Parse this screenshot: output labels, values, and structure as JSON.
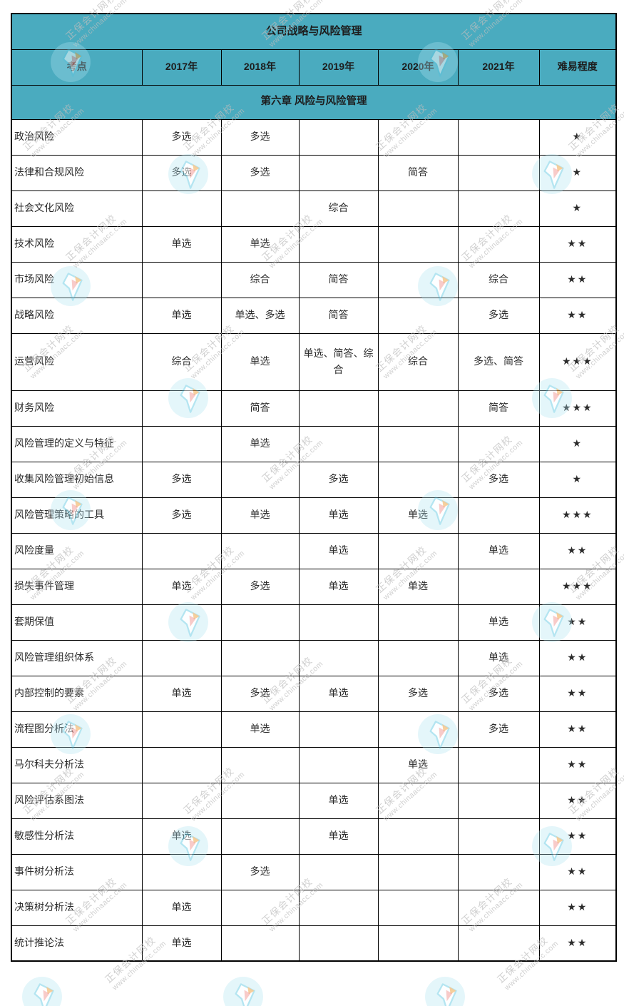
{
  "table": {
    "title": "公司战略与风险管理",
    "section": "第六章 风险与风险管理",
    "columns": [
      "考点",
      "2017年",
      "2018年",
      "2019年",
      "2020年",
      "2021年",
      "难易程度"
    ],
    "rows": [
      {
        "topic": "政治风险",
        "cells": [
          "多选",
          "多选",
          "",
          "",
          ""
        ],
        "difficulty": "★"
      },
      {
        "topic": "法律和合规风险",
        "cells": [
          "多选",
          "多选",
          "",
          "简答",
          ""
        ],
        "difficulty": "★"
      },
      {
        "topic": "社会文化风险",
        "cells": [
          "",
          "",
          "综合",
          "",
          ""
        ],
        "difficulty": "★"
      },
      {
        "topic": "技术风险",
        "cells": [
          "单选",
          "单选",
          "",
          "",
          ""
        ],
        "difficulty": "★★"
      },
      {
        "topic": "市场风险",
        "cells": [
          "",
          "综合",
          "简答",
          "",
          "综合"
        ],
        "difficulty": "★★"
      },
      {
        "topic": "战略风险",
        "cells": [
          "单选",
          "单选、多选",
          "简答",
          "",
          "多选"
        ],
        "difficulty": "★★"
      },
      {
        "topic": "运营风险",
        "cells": [
          "综合",
          "单选",
          "单选、简答、综合",
          "综合",
          "多选、简答"
        ],
        "difficulty": "★★★"
      },
      {
        "topic": "财务风险",
        "cells": [
          "",
          "简答",
          "",
          "",
          "简答"
        ],
        "difficulty": "★★★"
      },
      {
        "topic": "风险管理的定义与特征",
        "cells": [
          "",
          "单选",
          "",
          "",
          ""
        ],
        "difficulty": "★"
      },
      {
        "topic": "收集风险管理初始信息",
        "cells": [
          "多选",
          "",
          "多选",
          "",
          "多选"
        ],
        "difficulty": "★"
      },
      {
        "topic": "风险管理策略的工具",
        "cells": [
          "多选",
          "单选",
          "单选",
          "单选",
          ""
        ],
        "difficulty": "★★★"
      },
      {
        "topic": "风险度量",
        "cells": [
          "",
          "",
          "单选",
          "",
          "单选"
        ],
        "difficulty": "★★"
      },
      {
        "topic": "损失事件管理",
        "cells": [
          "单选",
          "多选",
          "单选",
          "单选",
          ""
        ],
        "difficulty": "★★★"
      },
      {
        "topic": "套期保值",
        "cells": [
          "",
          "",
          "",
          "",
          "单选"
        ],
        "difficulty": "★★"
      },
      {
        "topic": "风险管理组织体系",
        "cells": [
          "",
          "",
          "",
          "",
          "单选"
        ],
        "difficulty": "★★"
      },
      {
        "topic": "内部控制的要素",
        "cells": [
          "单选",
          "多选",
          "单选",
          "多选",
          "多选"
        ],
        "difficulty": "★★"
      },
      {
        "topic": "流程图分析法",
        "cells": [
          "",
          "单选",
          "",
          "",
          "多选"
        ],
        "difficulty": "★★"
      },
      {
        "topic": "马尔科夫分析法",
        "cells": [
          "",
          "",
          "",
          "单选",
          ""
        ],
        "difficulty": "★★"
      },
      {
        "topic": "风险评估系图法",
        "cells": [
          "",
          "",
          "单选",
          "",
          ""
        ],
        "difficulty": "★★"
      },
      {
        "topic": "敏感性分析法",
        "cells": [
          "单选",
          "",
          "单选",
          "",
          ""
        ],
        "difficulty": "★★"
      },
      {
        "topic": "事件树分析法",
        "cells": [
          "",
          "多选",
          "",
          "",
          ""
        ],
        "difficulty": "★★"
      },
      {
        "topic": "决策树分析法",
        "cells": [
          "单选",
          "",
          "",
          "",
          ""
        ],
        "difficulty": "★★"
      },
      {
        "topic": "统计推论法",
        "cells": [
          "单选",
          "",
          "",
          "",
          ""
        ],
        "difficulty": "★★"
      }
    ]
  },
  "watermark": {
    "line1": "正保会计网校",
    "line2": "www.chinaacc.com"
  },
  "colors": {
    "header_bg": "#4aabbf",
    "border": "#000000",
    "cell_text": "#2b2b2b",
    "star": "#3a3a3a",
    "watermark_text": "#bdbdbd",
    "logo_circle": "#aee3f0",
    "logo_plane_outline": "#6fcde4",
    "logo_accent": "#f0a03c"
  }
}
